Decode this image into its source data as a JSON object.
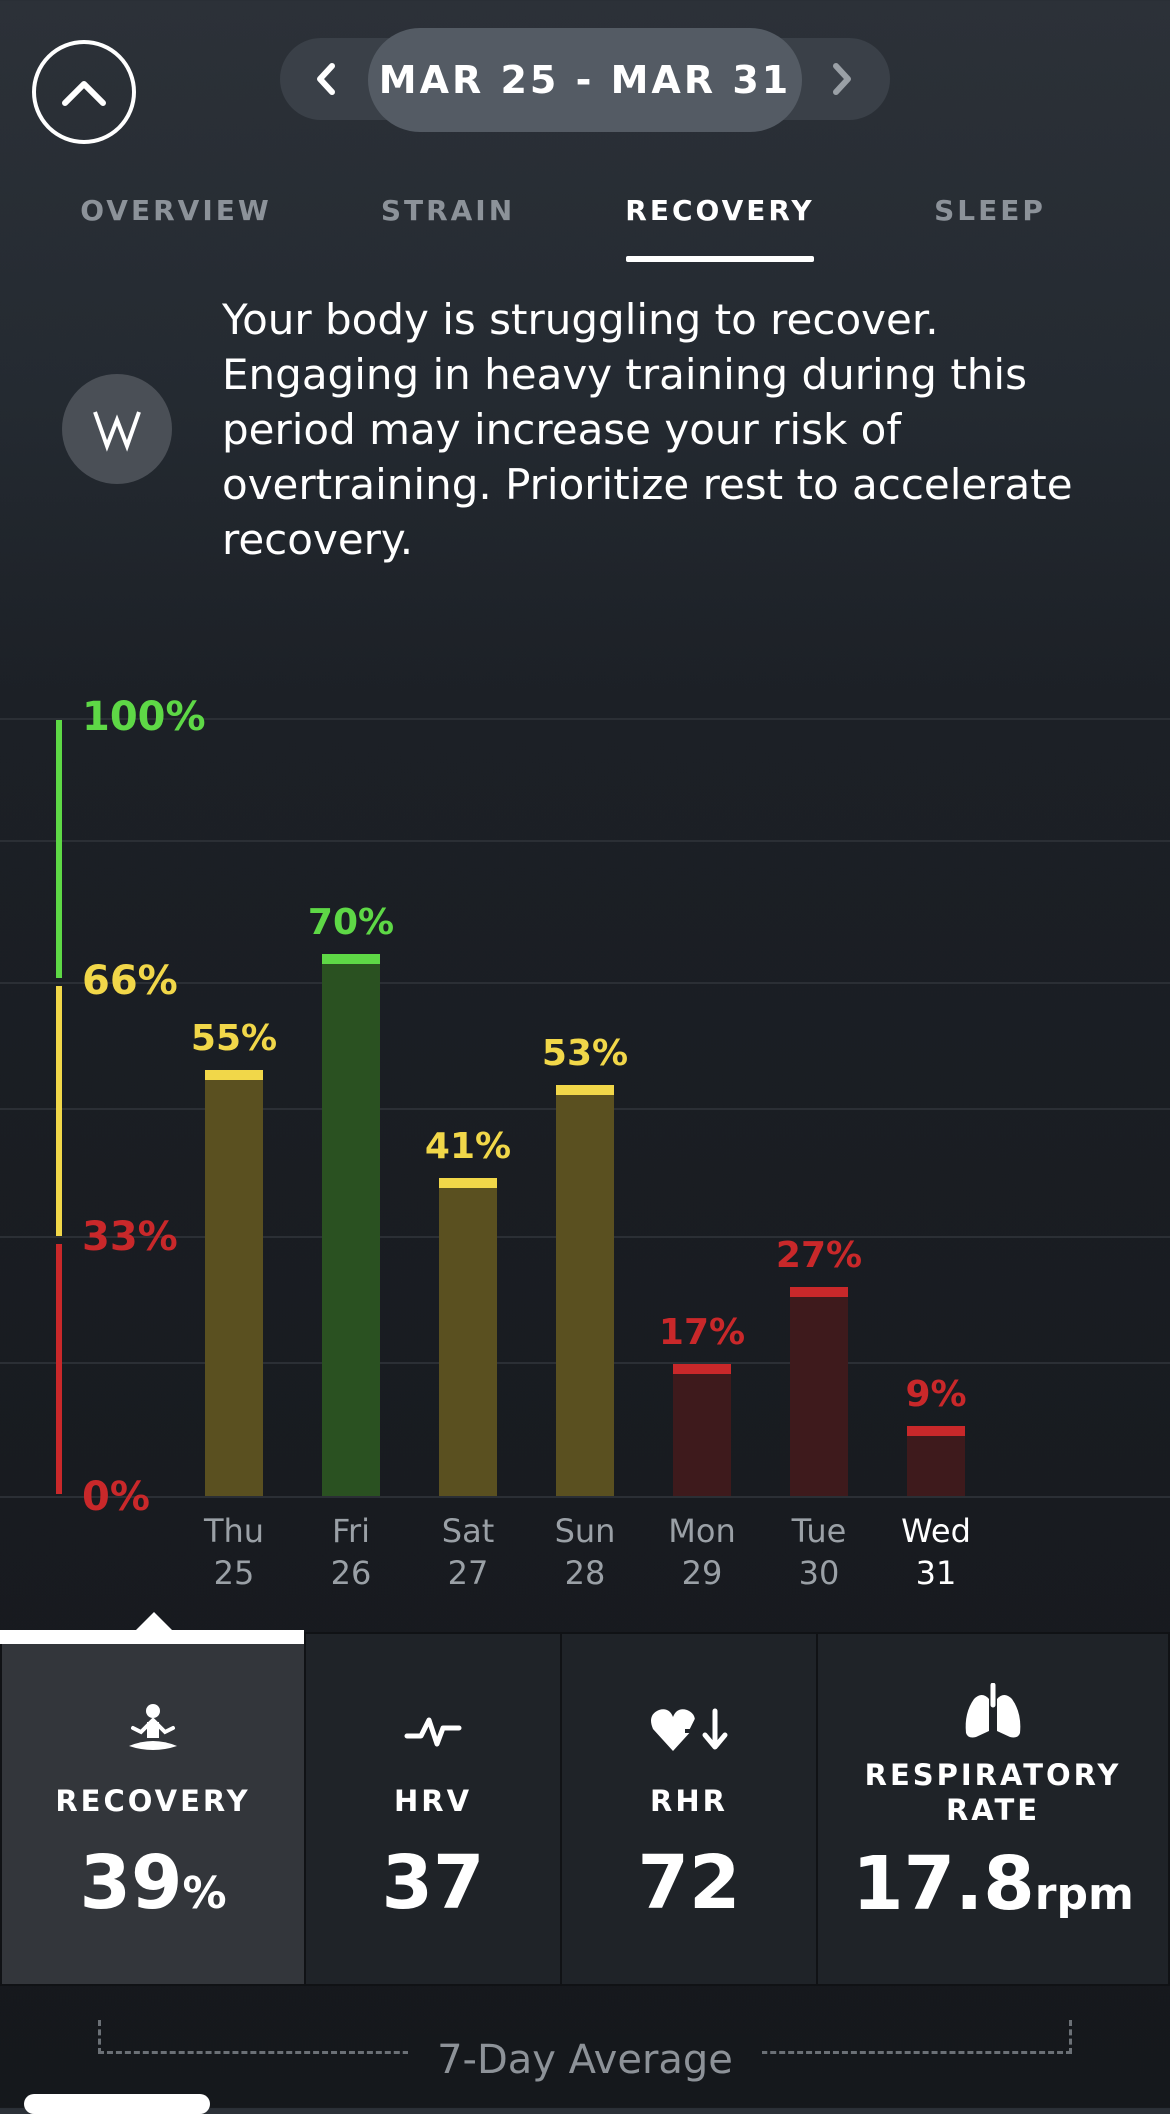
{
  "header": {
    "date_range": "MAR 25 - MAR 31",
    "collapse_icon": "chevron-up-icon",
    "prev_icon": "chevron-left-icon",
    "next_icon": "chevron-right-icon"
  },
  "tabs": [
    {
      "label": "OVERVIEW",
      "active": false
    },
    {
      "label": "STRAIN",
      "active": false
    },
    {
      "label": "RECOVERY",
      "active": true
    },
    {
      "label": "SLEEP",
      "active": false
    }
  ],
  "message": {
    "icon": "whoop-logo-icon",
    "text": "Your body is struggling to recover. Engaging in heavy training during this period may increase your risk of overtraining. Prioritize rest to accelerate recovery."
  },
  "colors": {
    "green": "#5ed846",
    "yellow": "#f1d749",
    "red": "#c9282a",
    "green_fill": "#2a5121",
    "yellow_fill": "#5a5020",
    "red_fill": "#3e1a1c"
  },
  "chart_data": {
    "type": "bar",
    "y_ticks": [
      "100%",
      "66%",
      "33%",
      "0%"
    ],
    "ylim": [
      0,
      100
    ],
    "days": [
      {
        "day": "Thu",
        "date": "25",
        "value": 55,
        "label": "55%",
        "zone": "yellow"
      },
      {
        "day": "Fri",
        "date": "26",
        "value": 70,
        "label": "70%",
        "zone": "green"
      },
      {
        "day": "Sat",
        "date": "27",
        "value": 41,
        "label": "41%",
        "zone": "yellow"
      },
      {
        "day": "Sun",
        "date": "28",
        "value": 53,
        "label": "53%",
        "zone": "yellow"
      },
      {
        "day": "Mon",
        "date": "29",
        "value": 17,
        "label": "17%",
        "zone": "red"
      },
      {
        "day": "Tue",
        "date": "30",
        "value": 27,
        "label": "27%",
        "zone": "red"
      },
      {
        "day": "Wed",
        "date": "31",
        "value": 9,
        "label": "9%",
        "zone": "red",
        "current": true
      }
    ]
  },
  "metrics": [
    {
      "id": "recovery",
      "label": "RECOVERY",
      "value": "39",
      "unit": "%",
      "icon": "meditation-icon",
      "selected": true
    },
    {
      "id": "hrv",
      "label": "HRV",
      "value": "37",
      "unit": "",
      "icon": "heartbeat-icon",
      "selected": false
    },
    {
      "id": "rhr",
      "label": "RHR",
      "value": "72",
      "unit": "",
      "icon": "heart-down-icon",
      "selected": false
    },
    {
      "id": "resp",
      "label": "RESPIRATORY RATE",
      "value": "17.8",
      "unit": "rpm",
      "icon": "lungs-icon",
      "selected": false
    }
  ],
  "footer": {
    "average_label": "7-Day Average"
  }
}
